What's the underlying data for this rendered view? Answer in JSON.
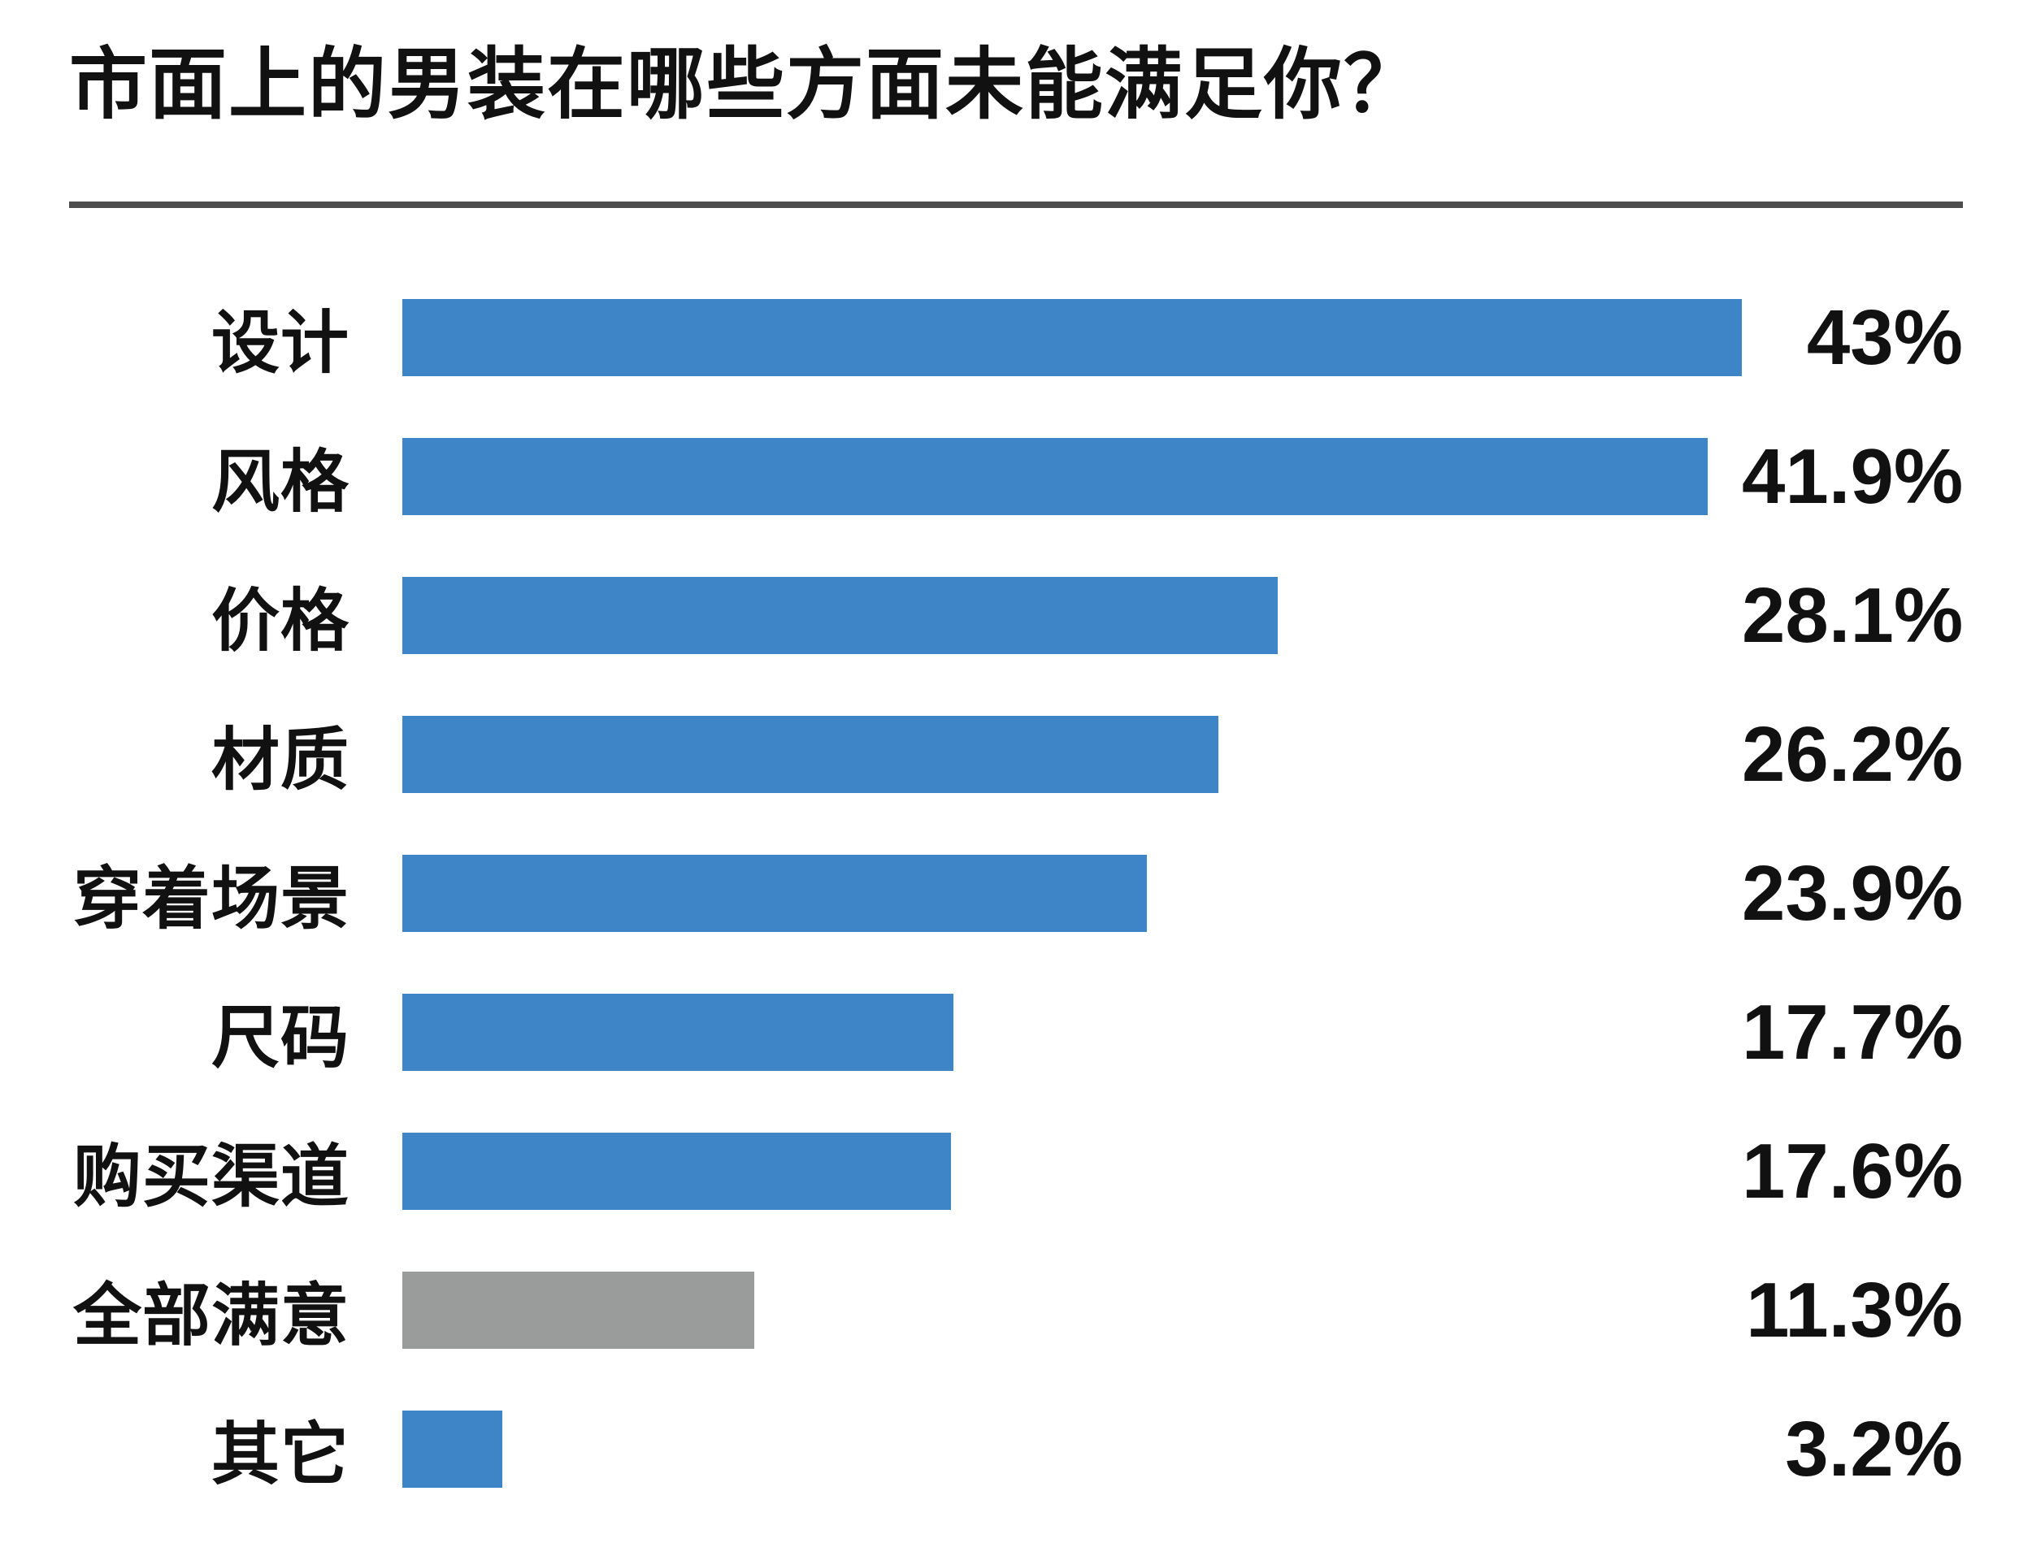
{
  "page": {
    "background": "#ffffff",
    "text_color": "#111111",
    "divider_color": "#4d4d4d"
  },
  "chart_data": {
    "type": "bar",
    "orientation": "horizontal",
    "title": "市面上的男装在哪些方面未能满足你？",
    "categories": [
      "设计",
      "风格",
      "价格",
      "材质",
      "穿着场景",
      "尺码",
      "购买渠道",
      "全部满意",
      "其它"
    ],
    "values": [
      43,
      41.9,
      28.1,
      26.2,
      23.9,
      17.7,
      17.6,
      11.3,
      3.2
    ],
    "value_labels": [
      "43%",
      "41.9%",
      "28.1%",
      "26.2%",
      "23.9%",
      "17.7%",
      "17.6%",
      "11.3%",
      "3.2%"
    ],
    "bar_colors": [
      "#3d85c6",
      "#3d85c6",
      "#3d85c6",
      "#3d85c6",
      "#3d85c6",
      "#3d85c6",
      "#3d85c6",
      "#9a9c9c",
      "#3d85c6"
    ],
    "default_bar_color": "#3d85c6",
    "muted_bar_color": "#9a9c9c",
    "xlim": [
      0,
      43
    ],
    "xlabel": "",
    "ylabel": "",
    "grid": false,
    "legend": "none",
    "value_label_position": "right-aligned-column",
    "category_label_position": "left-right-aligned"
  }
}
